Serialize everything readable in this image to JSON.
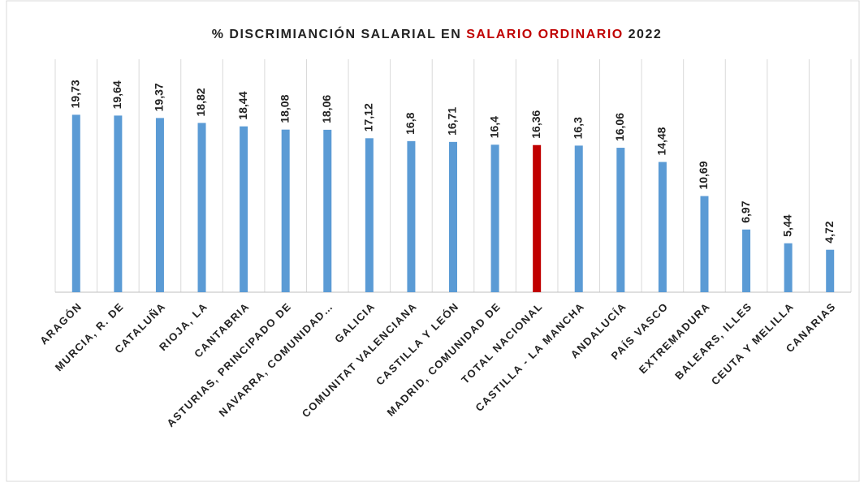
{
  "chart_data": {
    "type": "bar",
    "title": [
      "% DISCRIMIANCIÓN SALARIAL EN",
      "SALARIO ORDINARIO",
      "2022"
    ],
    "title_colors": [
      "#222222",
      "#c00000",
      "#222222"
    ],
    "categories": [
      "ARAGÓN",
      "MURCIA, R. DE",
      "CATALUÑA",
      "RIOJA, LA",
      "CANTABRIA",
      "ASTURIAS, PRINCIPADO DE",
      "NAVARRA, COMUNIDAD…",
      "GALICIA",
      "COMUNITAT VALENCIANA",
      "CASTILLA Y LEÓN",
      "MADRID, COMUNIDAD DE",
      "TOTAL NACIONAL",
      "CASTILLA - LA MANCHA",
      "ANDALUCÍA",
      "PAÍS VASCO",
      "EXTREMADURA",
      "BALEARS, ILLES",
      "CEUTA Y MELILLA",
      "CANARIAS"
    ],
    "values": [
      19.73,
      19.64,
      19.37,
      18.82,
      18.44,
      18.08,
      18.06,
      17.12,
      16.8,
      16.71,
      16.4,
      16.36,
      16.3,
      16.06,
      14.48,
      10.69,
      6.97,
      5.44,
      4.72
    ],
    "value_labels": [
      "19,73",
      "19,64",
      "19,37",
      "18,82",
      "18,44",
      "18,08",
      "18,06",
      "17,12",
      "16,8",
      "16,71",
      "16,4",
      "16,36",
      "16,3",
      "16,06",
      "14,48",
      "10,69",
      "6,97",
      "5,44",
      "4,72"
    ],
    "colors": [
      "#5b9bd5",
      "#5b9bd5",
      "#5b9bd5",
      "#5b9bd5",
      "#5b9bd5",
      "#5b9bd5",
      "#5b9bd5",
      "#5b9bd5",
      "#5b9bd5",
      "#5b9bd5",
      "#5b9bd5",
      "#c00000",
      "#5b9bd5",
      "#5b9bd5",
      "#5b9bd5",
      "#5b9bd5",
      "#5b9bd5",
      "#5b9bd5",
      "#5b9bd5"
    ],
    "ylim": [
      0,
      25
    ]
  }
}
